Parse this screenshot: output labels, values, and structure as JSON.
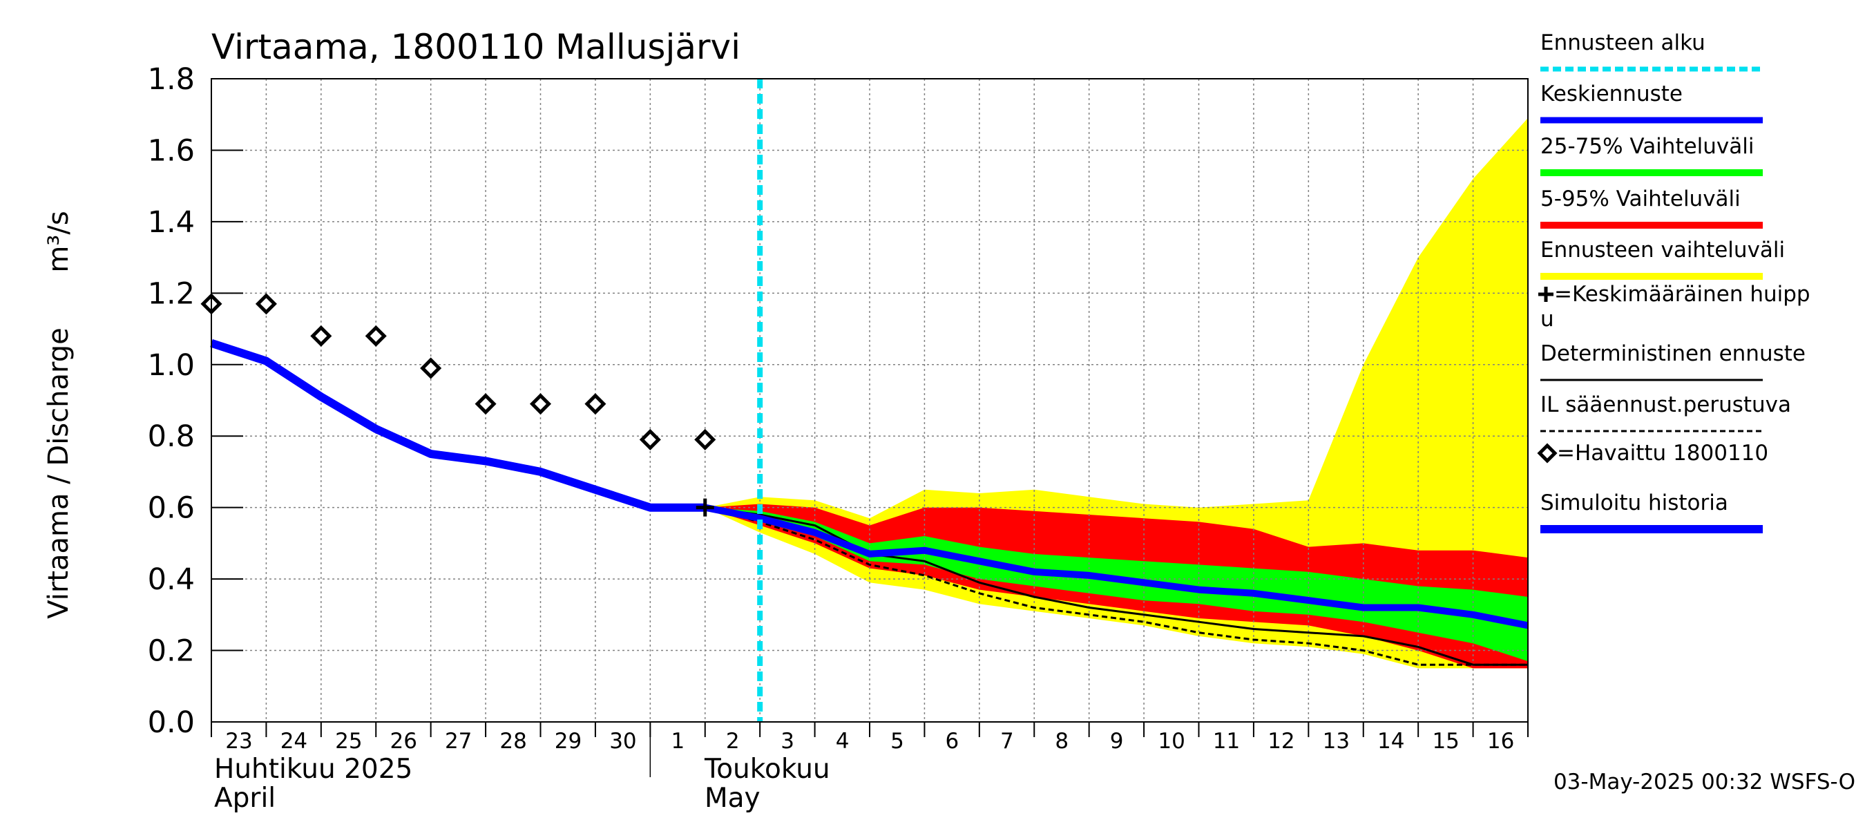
{
  "chart_data": {
    "type": "line",
    "title": "Virtaama, 1800110 Mallusjärvi",
    "ylabel": "Virtaama / Discharge",
    "yunit": "m³/s",
    "ylim": [
      0.0,
      1.8
    ],
    "yticks": [
      "0.0",
      "0.2",
      "0.4",
      "0.6",
      "0.8",
      "1.0",
      "1.2",
      "1.4",
      "1.6",
      "1.8"
    ],
    "xlim": [
      0,
      24
    ],
    "x_day_labels": [
      "23",
      "24",
      "25",
      "26",
      "27",
      "28",
      "29",
      "30",
      "1",
      "2",
      "3",
      "4",
      "5",
      "6",
      "7",
      "8",
      "9",
      "10",
      "11",
      "12",
      "13",
      "14",
      "15",
      "16"
    ],
    "month_labels": [
      {
        "line1": "Huhtikuu  2025",
        "line2": "April"
      },
      {
        "line1": "Toukokuu",
        "line2": "May"
      }
    ],
    "grid": true,
    "forecast_start_x": 10,
    "timestamp": "03-May-2025 00:32 WSFS-O",
    "series": {
      "simulated_history": {
        "x": [
          0,
          1,
          2,
          3,
          4,
          5,
          6,
          7,
          8,
          9
        ],
        "y": [
          1.06,
          1.01,
          0.91,
          0.82,
          0.75,
          0.73,
          0.7,
          0.65,
          0.6,
          0.6
        ]
      },
      "observed": {
        "x": [
          0,
          1,
          2,
          3,
          4,
          5,
          6,
          7,
          8,
          9
        ],
        "y": [
          1.17,
          1.17,
          1.08,
          1.08,
          0.99,
          0.89,
          0.89,
          0.89,
          0.79,
          0.79
        ]
      },
      "mean_peak": {
        "x": 9,
        "y": 0.6
      },
      "mean_forecast": {
        "x": [
          9,
          10,
          11,
          12,
          13,
          14,
          15,
          16,
          17,
          18,
          19,
          20,
          21,
          22,
          23,
          24
        ],
        "y": [
          0.6,
          0.57,
          0.53,
          0.47,
          0.48,
          0.45,
          0.42,
          0.41,
          0.39,
          0.37,
          0.36,
          0.34,
          0.32,
          0.32,
          0.3,
          0.27
        ]
      },
      "deterministic": {
        "x": [
          9,
          10,
          11,
          12,
          13,
          14,
          15,
          16,
          17,
          18,
          19,
          20,
          21,
          22,
          23,
          24
        ],
        "y": [
          0.6,
          0.58,
          0.55,
          0.47,
          0.45,
          0.39,
          0.35,
          0.32,
          0.3,
          0.28,
          0.26,
          0.25,
          0.24,
          0.21,
          0.16,
          0.16
        ]
      },
      "il_weather": {
        "x": [
          9,
          10,
          11,
          12,
          13,
          14,
          15,
          16,
          17,
          18,
          19,
          20,
          21,
          22,
          23,
          24
        ],
        "y": [
          0.6,
          0.56,
          0.51,
          0.44,
          0.41,
          0.36,
          0.32,
          0.3,
          0.28,
          0.25,
          0.23,
          0.22,
          0.2,
          0.16,
          0.16,
          0.16
        ]
      },
      "range_full": {
        "x": [
          9,
          10,
          11,
          12,
          13,
          14,
          15,
          16,
          17,
          18,
          19,
          20,
          21,
          22,
          23,
          24
        ],
        "upper": [
          0.6,
          0.63,
          0.62,
          0.57,
          0.65,
          0.64,
          0.65,
          0.63,
          0.61,
          0.6,
          0.61,
          0.62,
          1.0,
          1.3,
          1.52,
          1.69
        ],
        "lower": [
          0.6,
          0.53,
          0.47,
          0.39,
          0.37,
          0.33,
          0.31,
          0.29,
          0.27,
          0.24,
          0.22,
          0.21,
          0.19,
          0.15,
          0.15,
          0.15
        ]
      },
      "range_5_95": {
        "x": [
          9,
          10,
          11,
          12,
          13,
          14,
          15,
          16,
          17,
          18,
          19,
          20,
          21,
          22,
          23,
          24
        ],
        "upper": [
          0.6,
          0.61,
          0.6,
          0.55,
          0.6,
          0.6,
          0.59,
          0.58,
          0.57,
          0.56,
          0.54,
          0.49,
          0.5,
          0.48,
          0.48,
          0.46
        ],
        "lower": [
          0.6,
          0.55,
          0.5,
          0.43,
          0.41,
          0.37,
          0.35,
          0.33,
          0.31,
          0.29,
          0.28,
          0.27,
          0.24,
          0.2,
          0.15,
          0.15
        ]
      },
      "range_25_75": {
        "x": [
          9,
          10,
          11,
          12,
          13,
          14,
          15,
          16,
          17,
          18,
          19,
          20,
          21,
          22,
          23,
          24
        ],
        "upper": [
          0.6,
          0.59,
          0.56,
          0.5,
          0.52,
          0.49,
          0.47,
          0.46,
          0.45,
          0.44,
          0.43,
          0.42,
          0.4,
          0.38,
          0.37,
          0.35
        ],
        "lower": [
          0.6,
          0.56,
          0.52,
          0.45,
          0.44,
          0.4,
          0.38,
          0.36,
          0.34,
          0.33,
          0.31,
          0.3,
          0.28,
          0.25,
          0.22,
          0.17
        ]
      }
    },
    "legend": [
      {
        "label": "Ennusteen alku",
        "style": "dashed-cyan"
      },
      {
        "label": "Keskiennuste",
        "style": "line-blue"
      },
      {
        "label": "25-75% Vaihteluväli",
        "style": "line-green"
      },
      {
        "label": "5-95% Vaihteluväli",
        "style": "line-red"
      },
      {
        "label": "Ennusteen vaihteluväli",
        "style": "line-yellow"
      },
      {
        "label": "=Keskimääräinen huipp",
        "label2": "u",
        "style": "plus"
      },
      {
        "label": "Deterministinen ennuste",
        "style": "line-black"
      },
      {
        "label": "IL sääennust.perustuva",
        "style": "dashed-black"
      },
      {
        "label": "=Havaittu 1800110",
        "style": "diamond"
      },
      {
        "label": "Simuloitu historia",
        "style": "line-blue-thick"
      }
    ],
    "colors": {
      "yellow": "#ffff00",
      "red": "#ff0000",
      "green": "#00ff00",
      "blue": "#0000ff",
      "cyan": "#00e0f0",
      "grid": "#808080",
      "black": "#000000"
    }
  }
}
